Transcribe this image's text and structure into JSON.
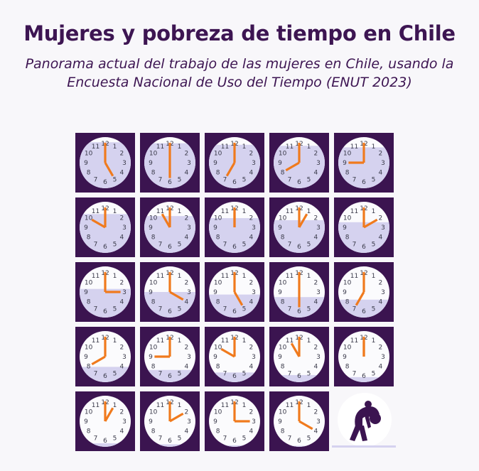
{
  "header": {
    "title": "Mujeres y pobreza de tiempo en Chile",
    "subtitle": "Panorama actual del trabajo de las mujeres en Chile, usando la Encuesta Nacional de Uso del Tiempo (ENUT 2023)"
  },
  "colors": {
    "tile_bg": "#3b1450",
    "clock_face": "#fbfbfd",
    "clock_fill": "#d5d2ef",
    "hands": "#f07a1d",
    "numerals": "#3a3a4a",
    "icon_circle": "#ffffff",
    "icon_figure": "#3b1450",
    "icon_line": "#d5d2ef"
  },
  "clock_numerals": [
    "12",
    "1",
    "2",
    "3",
    "4",
    "5",
    "6",
    "7",
    "8",
    "9",
    "10",
    "11"
  ],
  "clocks": [
    {
      "time": "5:00",
      "fill": 0.9
    },
    {
      "time": "6:00",
      "fill": 0.88
    },
    {
      "time": "7:00",
      "fill": 0.85
    },
    {
      "time": "8:00",
      "fill": 0.83
    },
    {
      "time": "9:00",
      "fill": 0.8
    },
    {
      "time": "10:00",
      "fill": 0.76
    },
    {
      "time": "11:00",
      "fill": 0.72
    },
    {
      "time": "12:00",
      "fill": 0.68
    },
    {
      "time": "1:00",
      "fill": 0.64
    },
    {
      "time": "2:00",
      "fill": 0.6
    },
    {
      "time": "3:00",
      "fill": 0.56
    },
    {
      "time": "4:00",
      "fill": 0.5
    },
    {
      "time": "5:00",
      "fill": 0.45
    },
    {
      "time": "6:00",
      "fill": 0.4
    },
    {
      "time": "7:00",
      "fill": 0.35
    },
    {
      "time": "8:00",
      "fill": 0.3
    },
    {
      "time": "9:00",
      "fill": 0.24
    },
    {
      "time": "10:00",
      "fill": 0.19
    },
    {
      "time": "11:00",
      "fill": 0.14
    },
    {
      "time": "12:00",
      "fill": 0.1
    },
    {
      "time": "1:00",
      "fill": 0.07
    },
    {
      "time": "2:00",
      "fill": 0.05
    },
    {
      "time": "3:00",
      "fill": 0.03
    },
    {
      "time": "4:00",
      "fill": 0.02
    }
  ],
  "final_icon": "exhausted-woman-icon"
}
